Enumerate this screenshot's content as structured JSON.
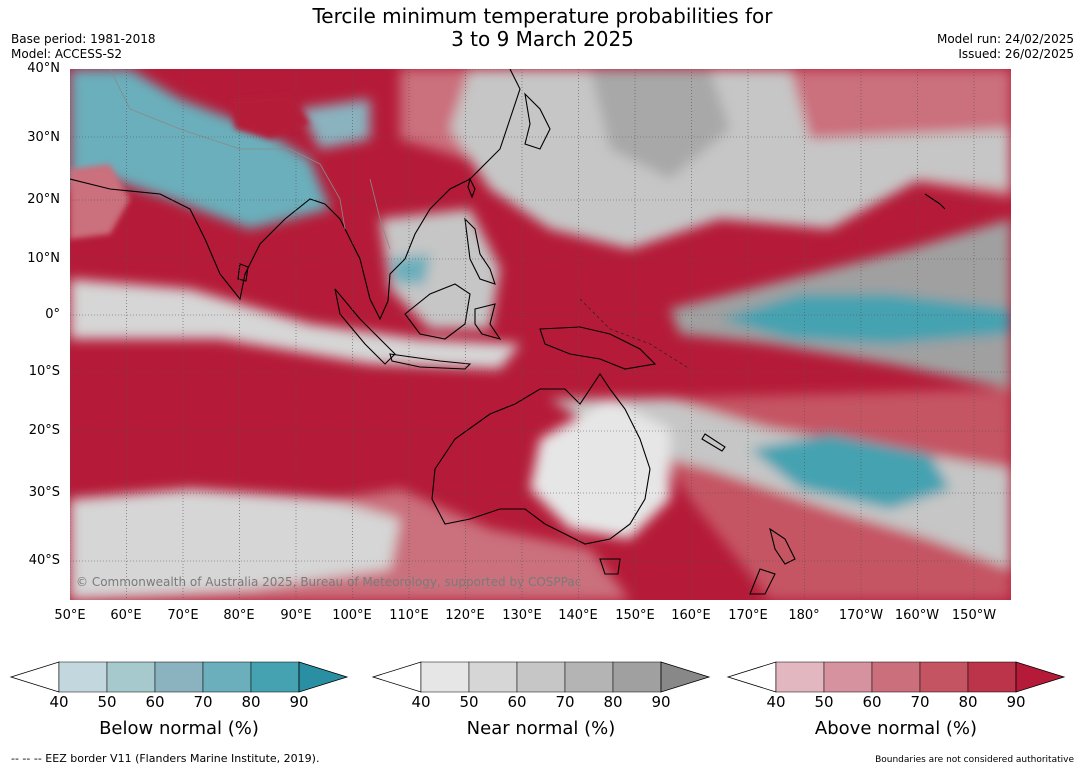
{
  "header": {
    "title_line1": "Tercile minimum temperature probabilities for",
    "title_line2": "3 to 9 March 2025",
    "base_period": "Base period: 1981-2018",
    "model": "Model: ACCESS-S2",
    "model_run": "Model run: 24/02/2025",
    "issued": "Issued: 26/02/2025"
  },
  "map": {
    "lat_labels": [
      "40°N",
      "30°N",
      "20°N",
      "10°N",
      "0°",
      "10°S",
      "20°S",
      "30°S",
      "40°S"
    ],
    "lon_labels": [
      "50°E",
      "60°E",
      "70°E",
      "80°E",
      "90°E",
      "100°E",
      "110°E",
      "120°E",
      "130°E",
      "140°E",
      "150°E",
      "160°E",
      "170°E",
      "180°",
      "170°W",
      "160°W",
      "150°W"
    ],
    "copyright": "© Commonwealth of Australia 2025, Bureau of Meteorology, supported by COSPPac",
    "colors": {
      "ocean_above": "#b51b38",
      "land_outline": "#000000",
      "grid": "#555555"
    }
  },
  "colorbars": [
    {
      "label": "Below normal (%)",
      "ticks": [
        "40",
        "50",
        "60",
        "70",
        "80",
        "90"
      ],
      "colors": [
        "#c2d8de",
        "#a6c9ce",
        "#8ab2bf",
        "#6aafbb",
        "#45a2b1",
        "#2a8fa2"
      ]
    },
    {
      "label": "Near normal (%)",
      "ticks": [
        "40",
        "50",
        "60",
        "70",
        "80",
        "90"
      ],
      "colors": [
        "#e6e6e6",
        "#d6d6d6",
        "#c6c6c6",
        "#b4b4b4",
        "#a0a0a0",
        "#888888"
      ]
    },
    {
      "label": "Above normal (%)",
      "ticks": [
        "40",
        "50",
        "60",
        "70",
        "80",
        "90"
      ],
      "colors": [
        "#e3b7c0",
        "#d6929f",
        "#cb6f7d",
        "#c55463",
        "#bc3449",
        "#b51b38"
      ]
    }
  ],
  "footer": {
    "eez_note": "-- -- -- EEZ border V11 (Flanders Marine Institute, 2019).",
    "boundaries_note": "Boundaries are not considered authoritative"
  }
}
